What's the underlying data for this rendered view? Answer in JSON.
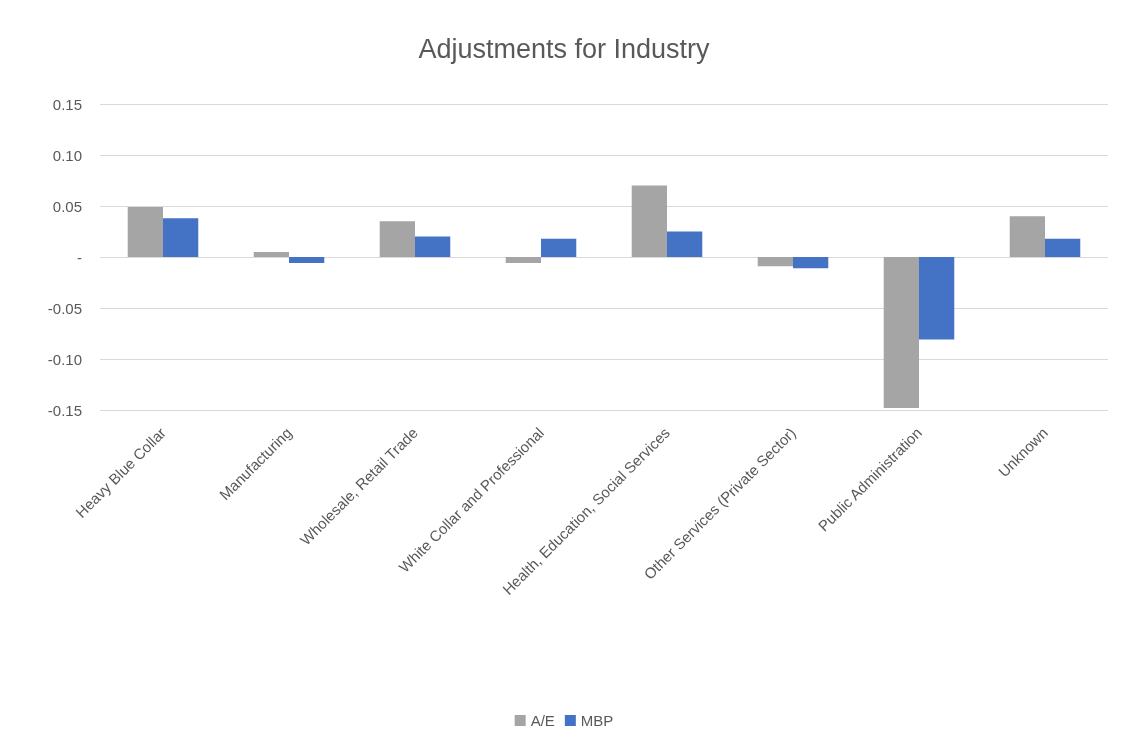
{
  "chart_data": {
    "type": "bar",
    "title": "Adjustments for Industry",
    "categories": [
      "Heavy Blue Collar",
      "Manufacturing",
      "Wholesale, Retail Trade",
      "White Collar and Professional",
      "Health, Education, Social Services",
      "Other Services (Private Sector)",
      "Public Administration",
      "Unknown"
    ],
    "series": [
      {
        "name": "A/E",
        "color": "#a5a5a5",
        "values": [
          0.049,
          0.005,
          0.035,
          -0.006,
          0.07,
          -0.009,
          -0.148,
          0.04
        ]
      },
      {
        "name": "MBP",
        "color": "#4472c4",
        "values": [
          0.038,
          -0.006,
          0.02,
          0.018,
          0.025,
          -0.011,
          -0.081,
          0.018
        ]
      }
    ],
    "ylim": [
      -0.15,
      0.15
    ],
    "yticks": [
      {
        "value": -0.15,
        "label": "-0.15"
      },
      {
        "value": -0.1,
        "label": "-0.10"
      },
      {
        "value": -0.05,
        "label": "-0.05"
      },
      {
        "value": 0,
        "label": "-"
      },
      {
        "value": 0.05,
        "label": "0.05"
      },
      {
        "value": 0.1,
        "label": "0.10"
      },
      {
        "value": 0.15,
        "label": "0.15"
      }
    ],
    "grid": "y",
    "legend": "bottom"
  }
}
